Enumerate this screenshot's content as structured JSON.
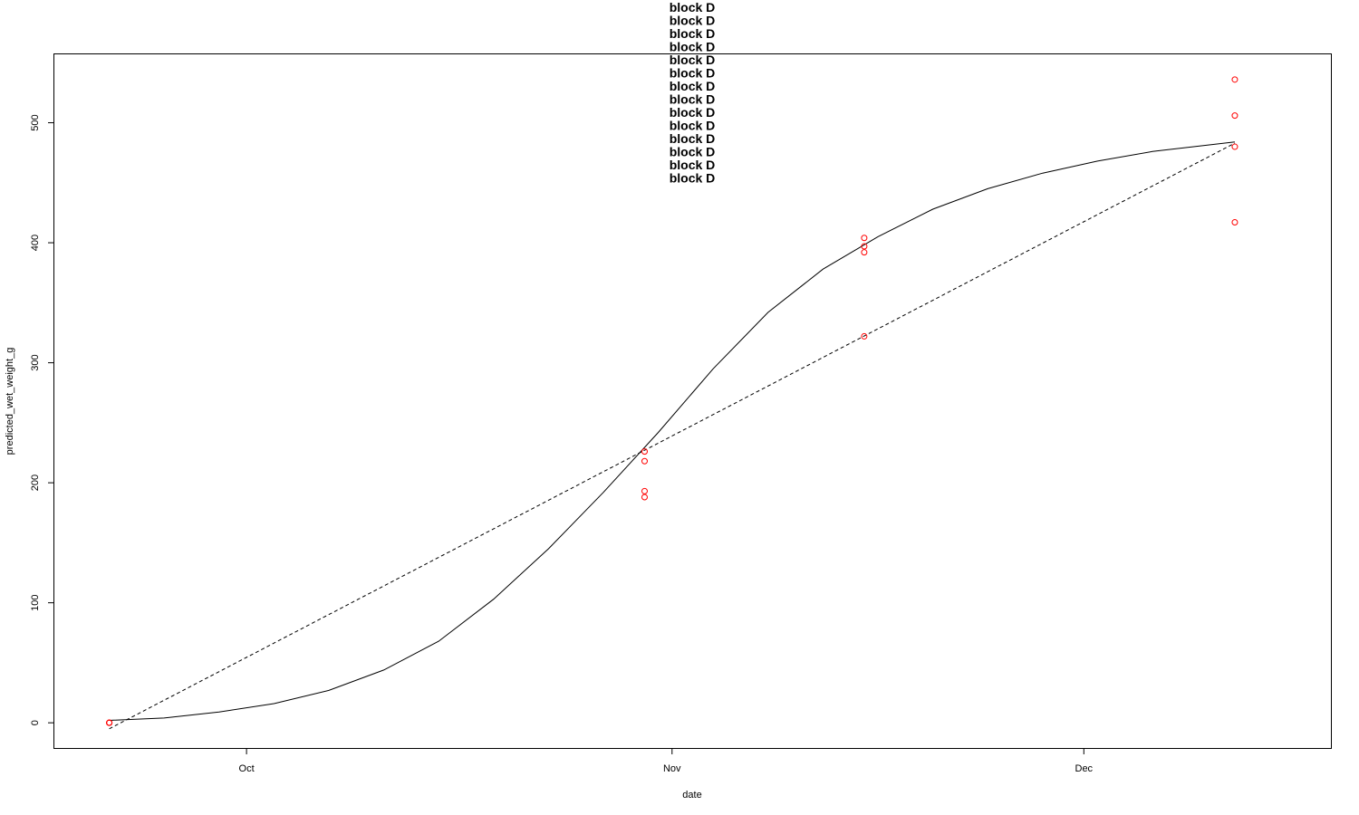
{
  "chart_data": {
    "type": "scatter",
    "title_lines": [
      "block D",
      "block D",
      "block D",
      "block D",
      "block D",
      "block D",
      "block D",
      "block D",
      "block D",
      "block D",
      "block D",
      "block D",
      "block D",
      "block D"
    ],
    "xlabel": "date",
    "ylabel": "predicted_wet_weight_g",
    "x_axis": {
      "type": "date",
      "range": [
        "2023-09-17",
        "2023-12-19"
      ],
      "ticks": [
        {
          "date": "2023-10-01",
          "label": "Oct"
        },
        {
          "date": "2023-11-01",
          "label": "Nov"
        },
        {
          "date": "2023-12-01",
          "label": "Dec"
        }
      ]
    },
    "y_axis": {
      "range": [
        -21,
        557
      ],
      "ticks": [
        0,
        100,
        200,
        300,
        400,
        500
      ]
    },
    "grid": false,
    "legend": "none",
    "series": [
      {
        "kind": "points",
        "color": "#ff0000",
        "points": [
          {
            "x": "2023-09-21",
            "y": 0
          },
          {
            "x": "2023-09-21",
            "y": 0
          },
          {
            "x": "2023-09-21",
            "y": 0
          },
          {
            "x": "2023-09-21",
            "y": 0
          },
          {
            "x": "2023-10-30",
            "y": 226
          },
          {
            "x": "2023-10-30",
            "y": 218
          },
          {
            "x": "2023-10-30",
            "y": 193
          },
          {
            "x": "2023-10-30",
            "y": 188
          },
          {
            "x": "2023-11-15",
            "y": 404
          },
          {
            "x": "2023-11-15",
            "y": 397
          },
          {
            "x": "2023-11-15",
            "y": 392
          },
          {
            "x": "2023-11-15",
            "y": 322
          },
          {
            "x": "2023-12-12",
            "y": 536
          },
          {
            "x": "2023-12-12",
            "y": 506
          },
          {
            "x": "2023-12-12",
            "y": 480
          },
          {
            "x": "2023-12-12",
            "y": 417
          }
        ]
      },
      {
        "kind": "line",
        "style": "solid",
        "color": "#000000",
        "points": [
          {
            "x": "2023-09-21",
            "y": 2
          },
          {
            "x": "2023-09-25",
            "y": 4
          },
          {
            "x": "2023-09-29",
            "y": 9
          },
          {
            "x": "2023-10-03",
            "y": 16
          },
          {
            "x": "2023-10-07",
            "y": 27
          },
          {
            "x": "2023-10-11",
            "y": 44
          },
          {
            "x": "2023-10-15",
            "y": 68
          },
          {
            "x": "2023-10-19",
            "y": 103
          },
          {
            "x": "2023-10-23",
            "y": 145
          },
          {
            "x": "2023-10-27",
            "y": 192
          },
          {
            "x": "2023-10-31",
            "y": 242
          },
          {
            "x": "2023-11-04",
            "y": 295
          },
          {
            "x": "2023-11-08",
            "y": 342
          },
          {
            "x": "2023-11-12",
            "y": 378
          },
          {
            "x": "2023-11-16",
            "y": 405
          },
          {
            "x": "2023-11-20",
            "y": 428
          },
          {
            "x": "2023-11-24",
            "y": 445
          },
          {
            "x": "2023-11-28",
            "y": 458
          },
          {
            "x": "2023-12-02",
            "y": 468
          },
          {
            "x": "2023-12-06",
            "y": 476
          },
          {
            "x": "2023-12-12",
            "y": 484
          }
        ]
      },
      {
        "kind": "line",
        "style": "dashed",
        "color": "#000000",
        "points": [
          {
            "x": "2023-09-21",
            "y": -5
          },
          {
            "x": "2023-12-12",
            "y": 483
          }
        ]
      }
    ]
  }
}
